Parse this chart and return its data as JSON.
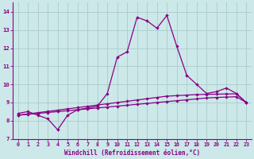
{
  "bg_color": "#cce8e8",
  "grid_color": "#aacccc",
  "line_color": "#880088",
  "xlabel": "Windchill (Refroidissement éolien,°C)",
  "ylim": [
    7,
    14.5
  ],
  "xlim": [
    -0.5,
    23.5
  ],
  "yticks": [
    7,
    8,
    9,
    10,
    11,
    12,
    13,
    14
  ],
  "xticks": [
    0,
    1,
    2,
    3,
    4,
    5,
    6,
    7,
    8,
    9,
    10,
    11,
    12,
    13,
    14,
    15,
    16,
    17,
    18,
    19,
    20,
    21,
    22,
    23
  ],
  "x": [
    0,
    1,
    2,
    3,
    4,
    5,
    6,
    7,
    8,
    9,
    10,
    11,
    12,
    13,
    14,
    15,
    16,
    17,
    18,
    19,
    20,
    21,
    22,
    23
  ],
  "line1": [
    8.4,
    8.5,
    8.3,
    8.1,
    7.5,
    8.3,
    8.6,
    8.7,
    8.8,
    9.5,
    11.5,
    11.8,
    13.7,
    13.5,
    13.1,
    13.8,
    12.1,
    10.5,
    10.0,
    9.5,
    9.6,
    9.8,
    9.5,
    9.0
  ],
  "line2": [
    8.3,
    8.37,
    8.44,
    8.51,
    8.58,
    8.65,
    8.72,
    8.79,
    8.86,
    8.93,
    9.0,
    9.07,
    9.14,
    9.21,
    9.28,
    9.35,
    9.38,
    9.41,
    9.44,
    9.45,
    9.46,
    9.47,
    9.48,
    9.0
  ],
  "line3": [
    8.3,
    8.35,
    8.4,
    8.45,
    8.5,
    8.55,
    8.6,
    8.65,
    8.7,
    8.75,
    8.8,
    8.85,
    8.9,
    8.95,
    9.0,
    9.05,
    9.1,
    9.15,
    9.2,
    9.25,
    9.28,
    9.3,
    9.32,
    9.0
  ]
}
